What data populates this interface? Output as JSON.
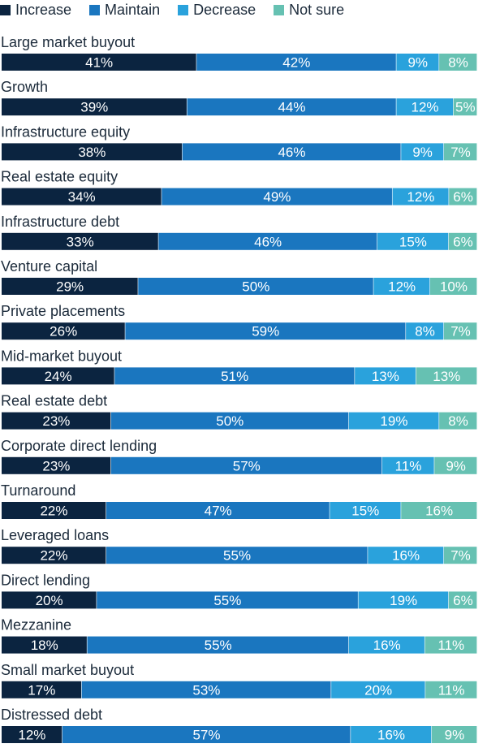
{
  "chart_data": {
    "type": "bar",
    "orientation": "horizontal",
    "stacked": true,
    "unit": "%",
    "series": [
      {
        "name": "Increase",
        "color": "#0b2440",
        "values": [
          41,
          39,
          38,
          34,
          33,
          29,
          26,
          24,
          23,
          23,
          22,
          22,
          20,
          18,
          17,
          12
        ]
      },
      {
        "name": "Maintain",
        "color": "#1a76bf",
        "values": [
          42,
          44,
          46,
          49,
          46,
          50,
          59,
          51,
          50,
          57,
          47,
          55,
          55,
          55,
          53,
          57
        ]
      },
      {
        "name": "Decrease",
        "color": "#2aa2dc",
        "values": [
          9,
          12,
          9,
          12,
          15,
          12,
          8,
          13,
          19,
          11,
          15,
          16,
          19,
          16,
          20,
          16
        ]
      },
      {
        "name": "Not sure",
        "color": "#66c1b2",
        "values": [
          8,
          5,
          7,
          6,
          6,
          10,
          7,
          13,
          8,
          9,
          16,
          7,
          6,
          11,
          11,
          9
        ]
      }
    ],
    "categories": [
      "Large market buyout",
      "Growth",
      "Infrastructure equity",
      "Real estate equity",
      "Infrastructure debt",
      "Venture capital",
      "Private placements",
      "Mid-market buyout",
      "Real estate debt",
      "Corporate direct lending",
      "Turnaround",
      "Leveraged loans",
      "Direct lending",
      "Mezzanine",
      "Small market buyout",
      "Distressed debt"
    ],
    "legend_position": "top-left",
    "grid": false,
    "title": "",
    "xlabel": "",
    "ylabel": ""
  }
}
